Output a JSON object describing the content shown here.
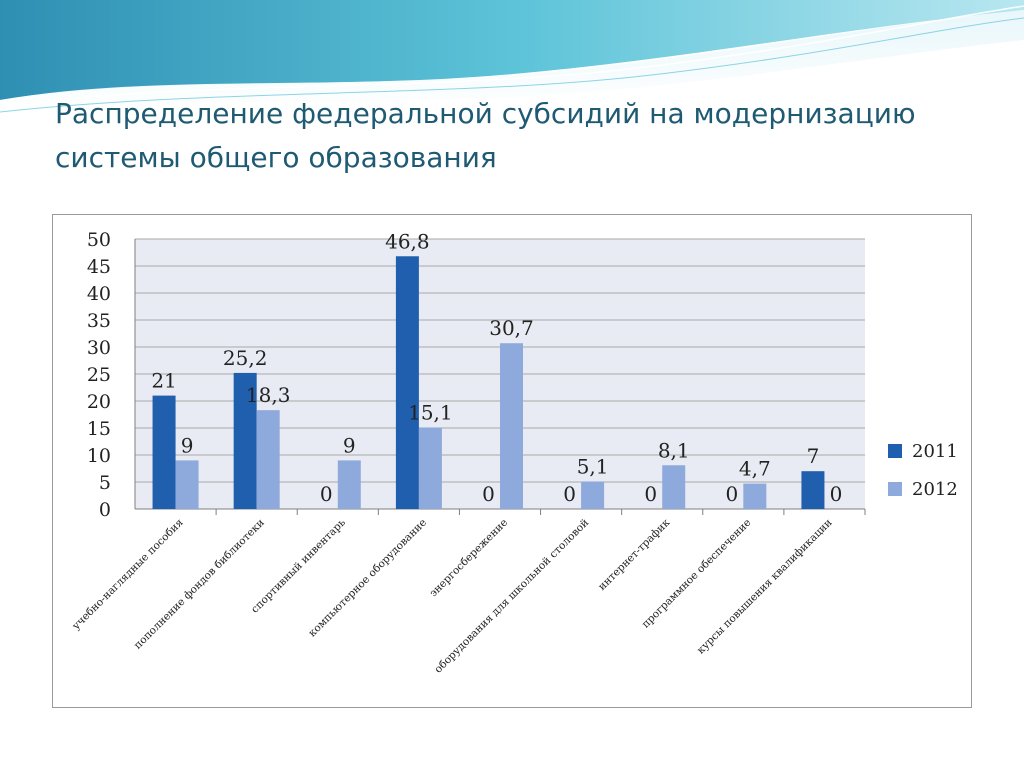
{
  "slide": {
    "title_line1": "Распределение федеральной субсидий на модернизацию",
    "title_line2": "системы общего образования"
  },
  "colors": {
    "series_2011": "#1f5fae",
    "series_2012": "#8ea9db",
    "title": "#1f5a73",
    "plot_bg": "#e8ebf3",
    "grid": "#a9a9a9",
    "header_wave": "#3aa6c2"
  },
  "chart_data": {
    "type": "bar",
    "title": "",
    "xlabel": "",
    "ylabel": "",
    "ylim": [
      0,
      50
    ],
    "yticks": [
      0,
      5,
      10,
      15,
      20,
      25,
      30,
      35,
      40,
      45,
      50
    ],
    "grid": true,
    "legend_position": "right",
    "categories": [
      "учебно-наглядные пособия",
      "пополнение фондов библиотеки",
      "спортивный инвентарь",
      "компьютерное оборудование",
      "энергосбережение",
      "оборудования для школьной столовой",
      "интернет-трафик",
      "программное обеспечение",
      "курсы повышения квалификации"
    ],
    "series": [
      {
        "name": "2011",
        "values": [
          21,
          25.2,
          0,
          46.8,
          0,
          0,
          0,
          0,
          7
        ],
        "labels": [
          "21",
          "25,2",
          "0",
          "46,8",
          "0",
          "0",
          "0",
          "0",
          "7"
        ]
      },
      {
        "name": "2012",
        "values": [
          9,
          18.3,
          9,
          15.1,
          30.7,
          5.1,
          8.1,
          4.7,
          0
        ],
        "labels": [
          "9",
          "18,3",
          "9",
          "15,1",
          "30,7",
          "5,1",
          "8,1",
          "4,7",
          "0"
        ]
      }
    ]
  }
}
